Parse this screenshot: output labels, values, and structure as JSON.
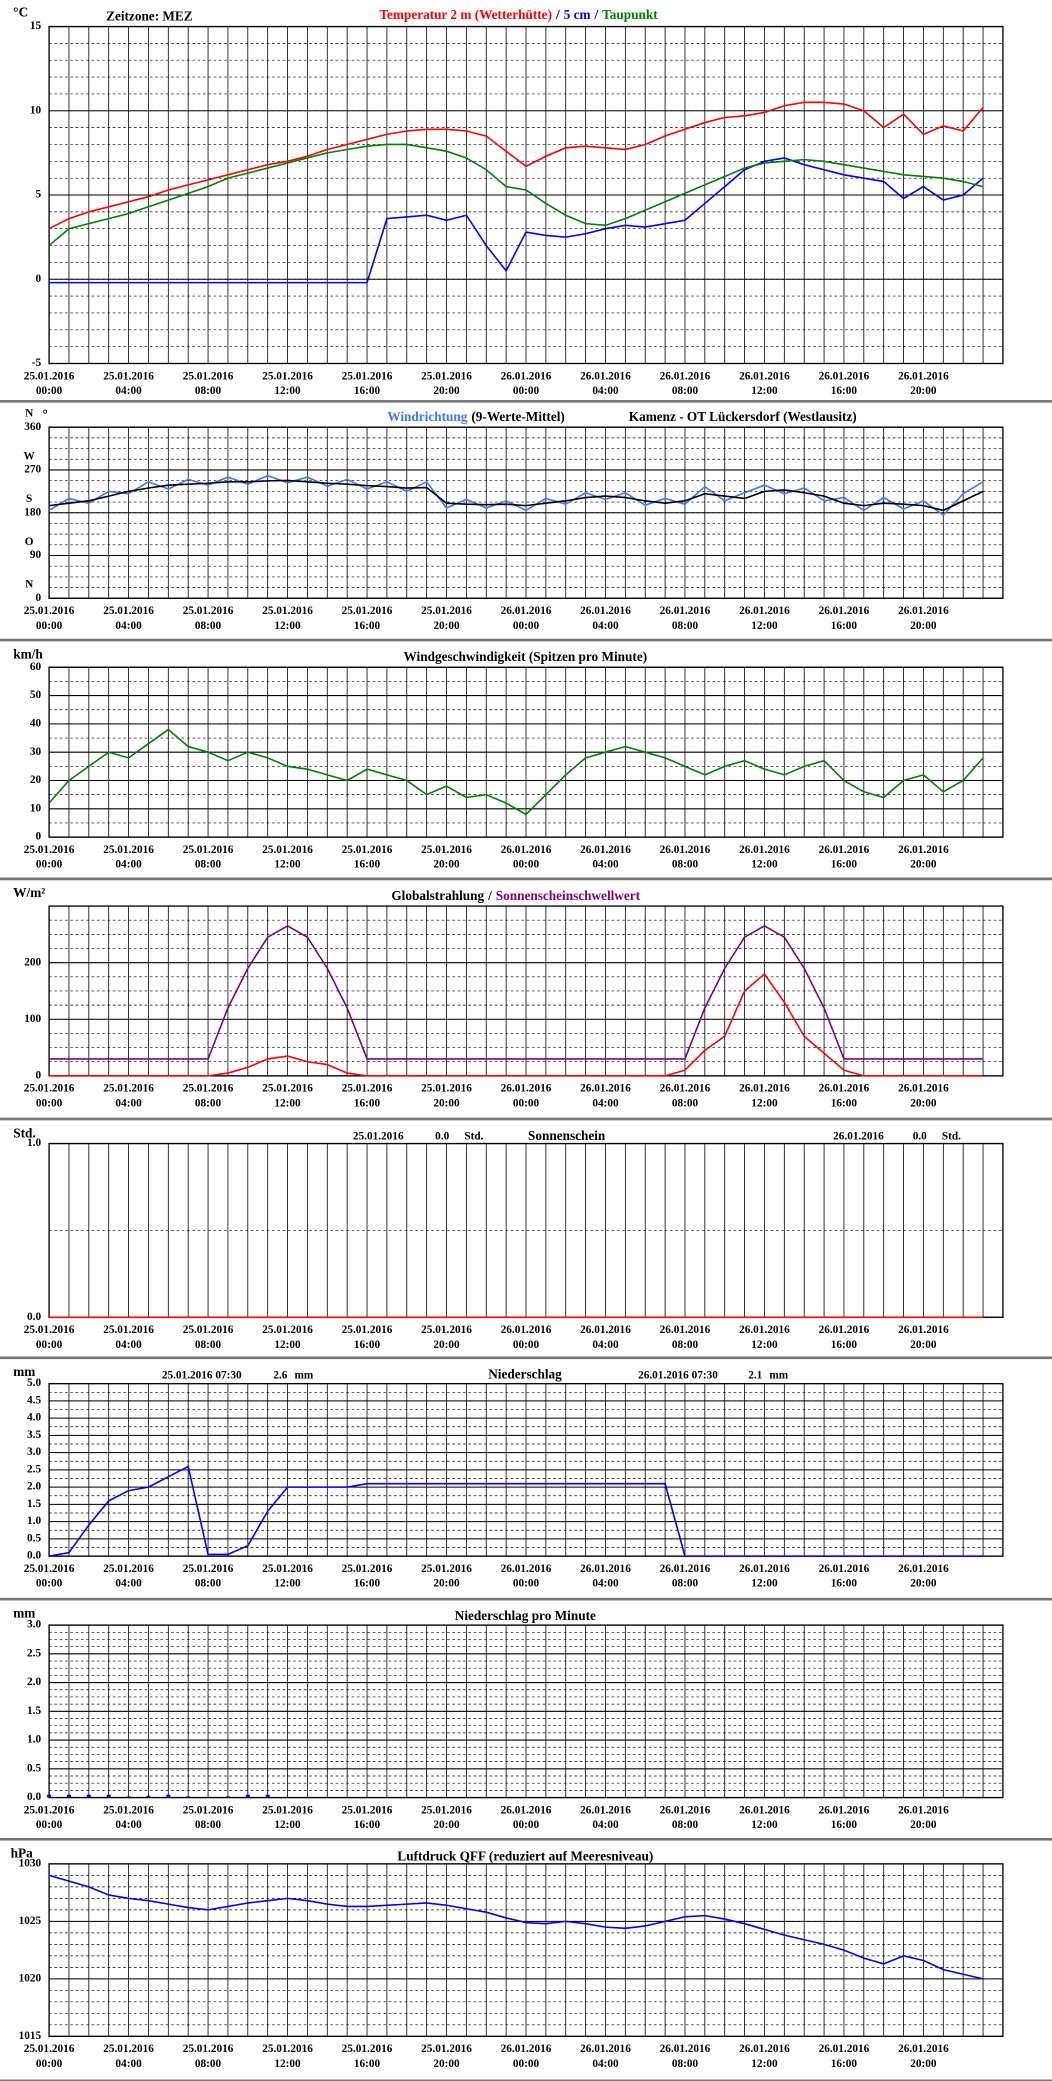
{
  "time": {
    "x": [
      "25.01.2016 00:00",
      "25.01.2016 01:00",
      "25.01.2016 02:00",
      "25.01.2016 03:00",
      "25.01.2016 04:00",
      "25.01.2016 05:00",
      "25.01.2016 06:00",
      "25.01.2016 07:00",
      "25.01.2016 08:00",
      "25.01.2016 09:00",
      "25.01.2016 10:00",
      "25.01.2016 11:00",
      "25.01.2016 12:00",
      "25.01.2016 13:00",
      "25.01.2016 14:00",
      "25.01.2016 15:00",
      "25.01.2016 16:00",
      "25.01.2016 17:00",
      "25.01.2016 18:00",
      "25.01.2016 19:00",
      "25.01.2016 20:00",
      "25.01.2016 21:00",
      "25.01.2016 22:00",
      "25.01.2016 23:00",
      "26.01.2016 00:00",
      "26.01.2016 01:00",
      "26.01.2016 02:00",
      "26.01.2016 03:00",
      "26.01.2016 04:00",
      "26.01.2016 05:00",
      "26.01.2016 06:00",
      "26.01.2016 07:00",
      "26.01.2016 08:00",
      "26.01.2016 09:00",
      "26.01.2016 10:00",
      "26.01.2016 11:00",
      "26.01.2016 12:00",
      "26.01.2016 13:00",
      "26.01.2016 14:00",
      "26.01.2016 15:00",
      "26.01.2016 16:00",
      "26.01.2016 17:00",
      "26.01.2016 18:00",
      "26.01.2016 19:00",
      "26.01.2016 20:00",
      "26.01.2016 21:00",
      "26.01.2016 22:00",
      "26.01.2016 23:00"
    ],
    "xlim": [
      "25.01.2016 00:00",
      "27.01.2016 00:00"
    ],
    "tick_dates": [
      "25.01.2016",
      "25.01.2016",
      "25.01.2016",
      "25.01.2016",
      "25.01.2016",
      "25.01.2016",
      "26.01.2016",
      "26.01.2016",
      "26.01.2016",
      "26.01.2016",
      "26.01.2016",
      "26.01.2016"
    ],
    "tick_times": [
      "00:00",
      "04:00",
      "08:00",
      "12:00",
      "16:00",
      "20:00",
      "00:00",
      "04:00",
      "08:00",
      "12:00",
      "16:00",
      "20:00"
    ]
  },
  "chart_data": [
    {
      "type": "line",
      "unit": "°C",
      "timezone": "Zeitzone: MEZ",
      "legend_separator": "/",
      "ylim": [
        -5,
        15
      ],
      "yticks": [
        -5,
        0,
        5,
        10,
        15
      ],
      "series": [
        {
          "name": "Temperatur 2 m (Wetterhütte)",
          "color": "#ff0000",
          "values": [
            3.0,
            3.6,
            4.0,
            4.3,
            4.6,
            4.9,
            5.3,
            5.6,
            5.9,
            6.2,
            6.5,
            6.8,
            7.0,
            7.3,
            7.7,
            8.0,
            8.3,
            8.6,
            8.8,
            8.9,
            8.9,
            8.8,
            8.5,
            7.6,
            6.7,
            7.3,
            7.8,
            7.9,
            7.8,
            7.7,
            8.0,
            8.5,
            8.9,
            9.3,
            9.6,
            9.7,
            9.9,
            10.3,
            10.5,
            10.5,
            10.4,
            10.0,
            9.0,
            9.8,
            8.6,
            9.1,
            8.8,
            10.2
          ]
        },
        {
          "name": "5 cm",
          "color": "#0000ff",
          "values": [
            -0.2,
            -0.2,
            -0.2,
            -0.2,
            -0.2,
            -0.2,
            -0.2,
            -0.2,
            -0.2,
            -0.2,
            -0.2,
            -0.2,
            -0.2,
            -0.2,
            -0.2,
            -0.2,
            -0.2,
            3.6,
            3.7,
            3.8,
            3.5,
            3.8,
            2.0,
            0.5,
            2.8,
            2.6,
            2.5,
            2.7,
            3.0,
            3.2,
            3.1,
            3.3,
            3.5,
            4.5,
            5.5,
            6.5,
            7.0,
            7.2,
            6.8,
            6.5,
            6.2,
            6.0,
            5.8,
            4.8,
            5.5,
            4.7,
            5.0,
            6.0
          ]
        },
        {
          "name": "Taupunkt",
          "color": "#008000",
          "values": [
            2.0,
            3.0,
            3.3,
            3.6,
            3.9,
            4.3,
            4.7,
            5.1,
            5.5,
            6.0,
            6.3,
            6.6,
            6.9,
            7.2,
            7.5,
            7.7,
            7.9,
            8.0,
            8.0,
            7.8,
            7.6,
            7.2,
            6.5,
            5.5,
            5.3,
            4.5,
            3.8,
            3.3,
            3.2,
            3.6,
            4.1,
            4.6,
            5.1,
            5.6,
            6.1,
            6.6,
            6.9,
            7.0,
            7.1,
            7.0,
            6.8,
            6.6,
            6.4,
            6.2,
            6.1,
            6.0,
            5.8,
            5.5
          ]
        }
      ]
    },
    {
      "type": "line",
      "unit": "°",
      "title": "Kamenz - OT Lückersdorf (Westlausitz)",
      "ylim": [
        0,
        360
      ],
      "yticks": [
        0,
        90,
        180,
        270,
        360
      ],
      "direction_labels": [
        {
          "value": 360,
          "label": "N"
        },
        {
          "value": 270,
          "label": "W"
        },
        {
          "value": 180,
          "label": "S"
        },
        {
          "value": 90,
          "label": "O"
        },
        {
          "value": 0,
          "label": "N"
        }
      ],
      "series": [
        {
          "name": "Windrichtung",
          "color": "#3a78ff",
          "values": [
            185,
            210,
            200,
            225,
            220,
            245,
            230,
            250,
            238,
            255,
            240,
            258,
            243,
            255,
            236,
            250,
            230,
            245,
            225,
            245,
            190,
            208,
            190,
            205,
            185,
            210,
            198,
            222,
            208,
            222,
            196,
            210,
            198,
            235,
            205,
            222,
            238,
            220,
            232,
            205,
            212,
            185,
            212,
            188,
            205,
            175,
            220,
            245
          ]
        },
        {
          "name": "(9-Werte-Mittel)",
          "color": "#000000",
          "values": [
            195,
            200,
            205,
            215,
            225,
            232,
            238,
            240,
            242,
            245,
            245,
            247,
            248,
            245,
            242,
            240,
            237,
            235,
            232,
            233,
            200,
            198,
            197,
            198,
            195,
            200,
            205,
            212,
            215,
            212,
            205,
            200,
            205,
            220,
            215,
            210,
            225,
            228,
            222,
            215,
            200,
            195,
            200,
            198,
            195,
            185,
            205,
            225
          ]
        }
      ]
    },
    {
      "type": "line",
      "unit": "km/h",
      "title": "Windgeschwindigkeit (Spitzen pro Minute)",
      "ylim": [
        0,
        60
      ],
      "yticks": [
        0,
        10,
        20,
        30,
        40,
        50,
        60
      ],
      "series": [
        {
          "color": "#008000",
          "values": [
            12,
            20,
            25,
            30,
            28,
            33,
            38,
            32,
            30,
            27,
            30,
            28,
            25,
            24,
            22,
            20,
            24,
            22,
            20,
            15,
            18,
            14,
            15,
            12,
            8,
            15,
            22,
            28,
            30,
            32,
            30,
            28,
            25,
            22,
            25,
            27,
            24,
            22,
            25,
            27,
            20,
            16,
            14,
            20,
            22,
            16,
            20,
            28
          ]
        }
      ]
    },
    {
      "type": "line",
      "unit": "W/m²",
      "legend_separator": "/",
      "ylim": [
        0,
        300
      ],
      "yticks": [
        0,
        100,
        200
      ],
      "series": [
        {
          "name": "Globalstrahlung",
          "color": "#ff0000",
          "label_color": "#000000",
          "values": [
            0,
            0,
            0,
            0,
            0,
            0,
            0,
            0,
            0,
            5,
            15,
            30,
            35,
            25,
            20,
            5,
            0,
            0,
            0,
            0,
            0,
            0,
            0,
            0,
            0,
            0,
            0,
            0,
            0,
            0,
            0,
            0,
            10,
            45,
            70,
            150,
            180,
            130,
            70,
            40,
            10,
            0,
            0,
            0,
            0,
            0,
            0,
            0
          ]
        },
        {
          "name": "Sonnenscheinschwellwert",
          "color": "#800080",
          "values": [
            30,
            30,
            30,
            30,
            30,
            30,
            30,
            30,
            30,
            120,
            190,
            245,
            265,
            245,
            190,
            120,
            30,
            30,
            30,
            30,
            30,
            30,
            30,
            30,
            30,
            30,
            30,
            30,
            30,
            30,
            30,
            30,
            30,
            120,
            190,
            245,
            265,
            245,
            190,
            120,
            30,
            30,
            30,
            30,
            30,
            30,
            30,
            30
          ]
        }
      ]
    },
    {
      "type": "line",
      "unit": "Std.",
      "title": "Sonnenschein",
      "daily": {
        "dates": [
          "25.01.2016",
          "26.01.2016"
        ],
        "values": [
          0,
          0
        ],
        "value_labels": [
          "0.0",
          "0.0"
        ],
        "unit": "Std."
      },
      "ylim": [
        0,
        1
      ],
      "yticks": [
        {
          "value": 0,
          "label": "0.0"
        },
        {
          "value": 1,
          "label": "1.0"
        }
      ],
      "series": [
        {
          "color": "#ff0000",
          "values": [
            0,
            0,
            0,
            0,
            0,
            0,
            0,
            0,
            0,
            0,
            0,
            0,
            0,
            0,
            0,
            0,
            0,
            0,
            0,
            0,
            0,
            0,
            0,
            0,
            0,
            0,
            0,
            0,
            0,
            0,
            0,
            0,
            0,
            0,
            0,
            0,
            0,
            0,
            0,
            0,
            0,
            0,
            0,
            0,
            0,
            0,
            0,
            0
          ]
        }
      ]
    },
    {
      "type": "line",
      "unit": "mm",
      "title": "Niederschlag",
      "daily": {
        "dates": [
          "25.01.2016 07:30",
          "26.01.2016 07:30"
        ],
        "values": [
          2.6,
          2.1
        ],
        "unit": "mm"
      },
      "ylim": [
        0,
        5
      ],
      "yticks": [
        {
          "value": 0,
          "label": "0.0"
        },
        0.5,
        {
          "value": 1,
          "label": "1.0"
        },
        1.5,
        {
          "value": 2,
          "label": "2.0"
        },
        2.5,
        {
          "value": 3,
          "label": "3.0"
        },
        3.5,
        {
          "value": 4,
          "label": "4.0"
        },
        4.5,
        {
          "value": 5,
          "label": "5.0"
        }
      ],
      "series": [
        {
          "color": "#0000ff",
          "values": [
            0,
            0.1,
            0.9,
            1.6,
            1.9,
            2.0,
            2.3,
            2.6,
            0.05,
            0.05,
            0.3,
            1.3,
            2.0,
            2.0,
            2.0,
            2.0,
            2.1,
            2.1,
            2.1,
            2.1,
            2.1,
            2.1,
            2.1,
            2.1,
            2.1,
            2.1,
            2.1,
            2.1,
            2.1,
            2.1,
            2.1,
            2.1,
            0,
            0,
            0,
            0,
            0,
            0,
            0,
            0,
            0,
            0,
            0,
            0,
            0,
            0,
            0,
            0
          ]
        }
      ]
    },
    {
      "type": "bar",
      "unit": "mm",
      "title": "Niederschlag pro Minute",
      "ylim": [
        0,
        3
      ],
      "yticks": [
        {
          "value": 0,
          "label": "0.0"
        },
        0.5,
        {
          "value": 1,
          "label": "1.0"
        },
        1.5,
        {
          "value": 2,
          "label": "2.0"
        },
        2.5,
        {
          "value": 3,
          "label": "3.0"
        }
      ],
      "series": [
        {
          "color": "#0000ff",
          "values": [
            0.05,
            0.05,
            0.05,
            0.05,
            0.02,
            0.03,
            0.05,
            0.02,
            0,
            0.02,
            0.05,
            0.05,
            0,
            0,
            0,
            0,
            0,
            0,
            0,
            0,
            0,
            0,
            0,
            0,
            0,
            0,
            0,
            0,
            0,
            0,
            0,
            0,
            0,
            0,
            0,
            0,
            0,
            0,
            0,
            0,
            0,
            0,
            0,
            0,
            0,
            0,
            0,
            0
          ]
        }
      ]
    },
    {
      "type": "line",
      "unit": "hPa",
      "title": "Luftdruck QFF (reduziert auf Meeresniveau)",
      "ylim": [
        1015,
        1030
      ],
      "yticks": [
        1015,
        1020,
        1025,
        1030
      ],
      "series": [
        {
          "color": "#0000ff",
          "values": [
            1029,
            1028.5,
            1028,
            1027.3,
            1027,
            1026.8,
            1026.5,
            1026.2,
            1026,
            1026.3,
            1026.6,
            1026.8,
            1027,
            1026.8,
            1026.5,
            1026.3,
            1026.3,
            1026.4,
            1026.5,
            1026.6,
            1026.4,
            1026.1,
            1025.8,
            1025.3,
            1024.9,
            1024.8,
            1025,
            1024.8,
            1024.5,
            1024.4,
            1024.6,
            1025,
            1025.4,
            1025.5,
            1025.2,
            1024.8,
            1024.3,
            1023.8,
            1023.4,
            1023,
            1022.5,
            1021.8,
            1021.3,
            1022,
            1021.6,
            1020.8,
            1020.4,
            1020
          ]
        }
      ]
    }
  ]
}
